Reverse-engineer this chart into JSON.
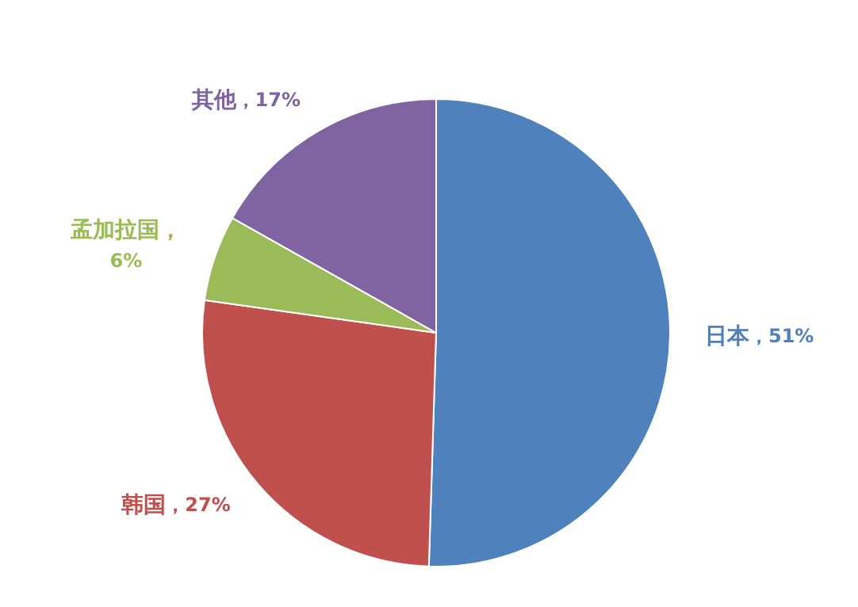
{
  "chart_data": {
    "type": "pie",
    "categories": [
      "日本",
      "韩国",
      "孟加拉国",
      "其他"
    ],
    "values": [
      51,
      27,
      6,
      17
    ],
    "colors": [
      "#4f81bd",
      "#c0504d",
      "#9bbb59",
      "#8064a2"
    ],
    "value_labels": [
      "，51%",
      "，27%",
      "，6%",
      "，17%"
    ],
    "legend": false
  }
}
